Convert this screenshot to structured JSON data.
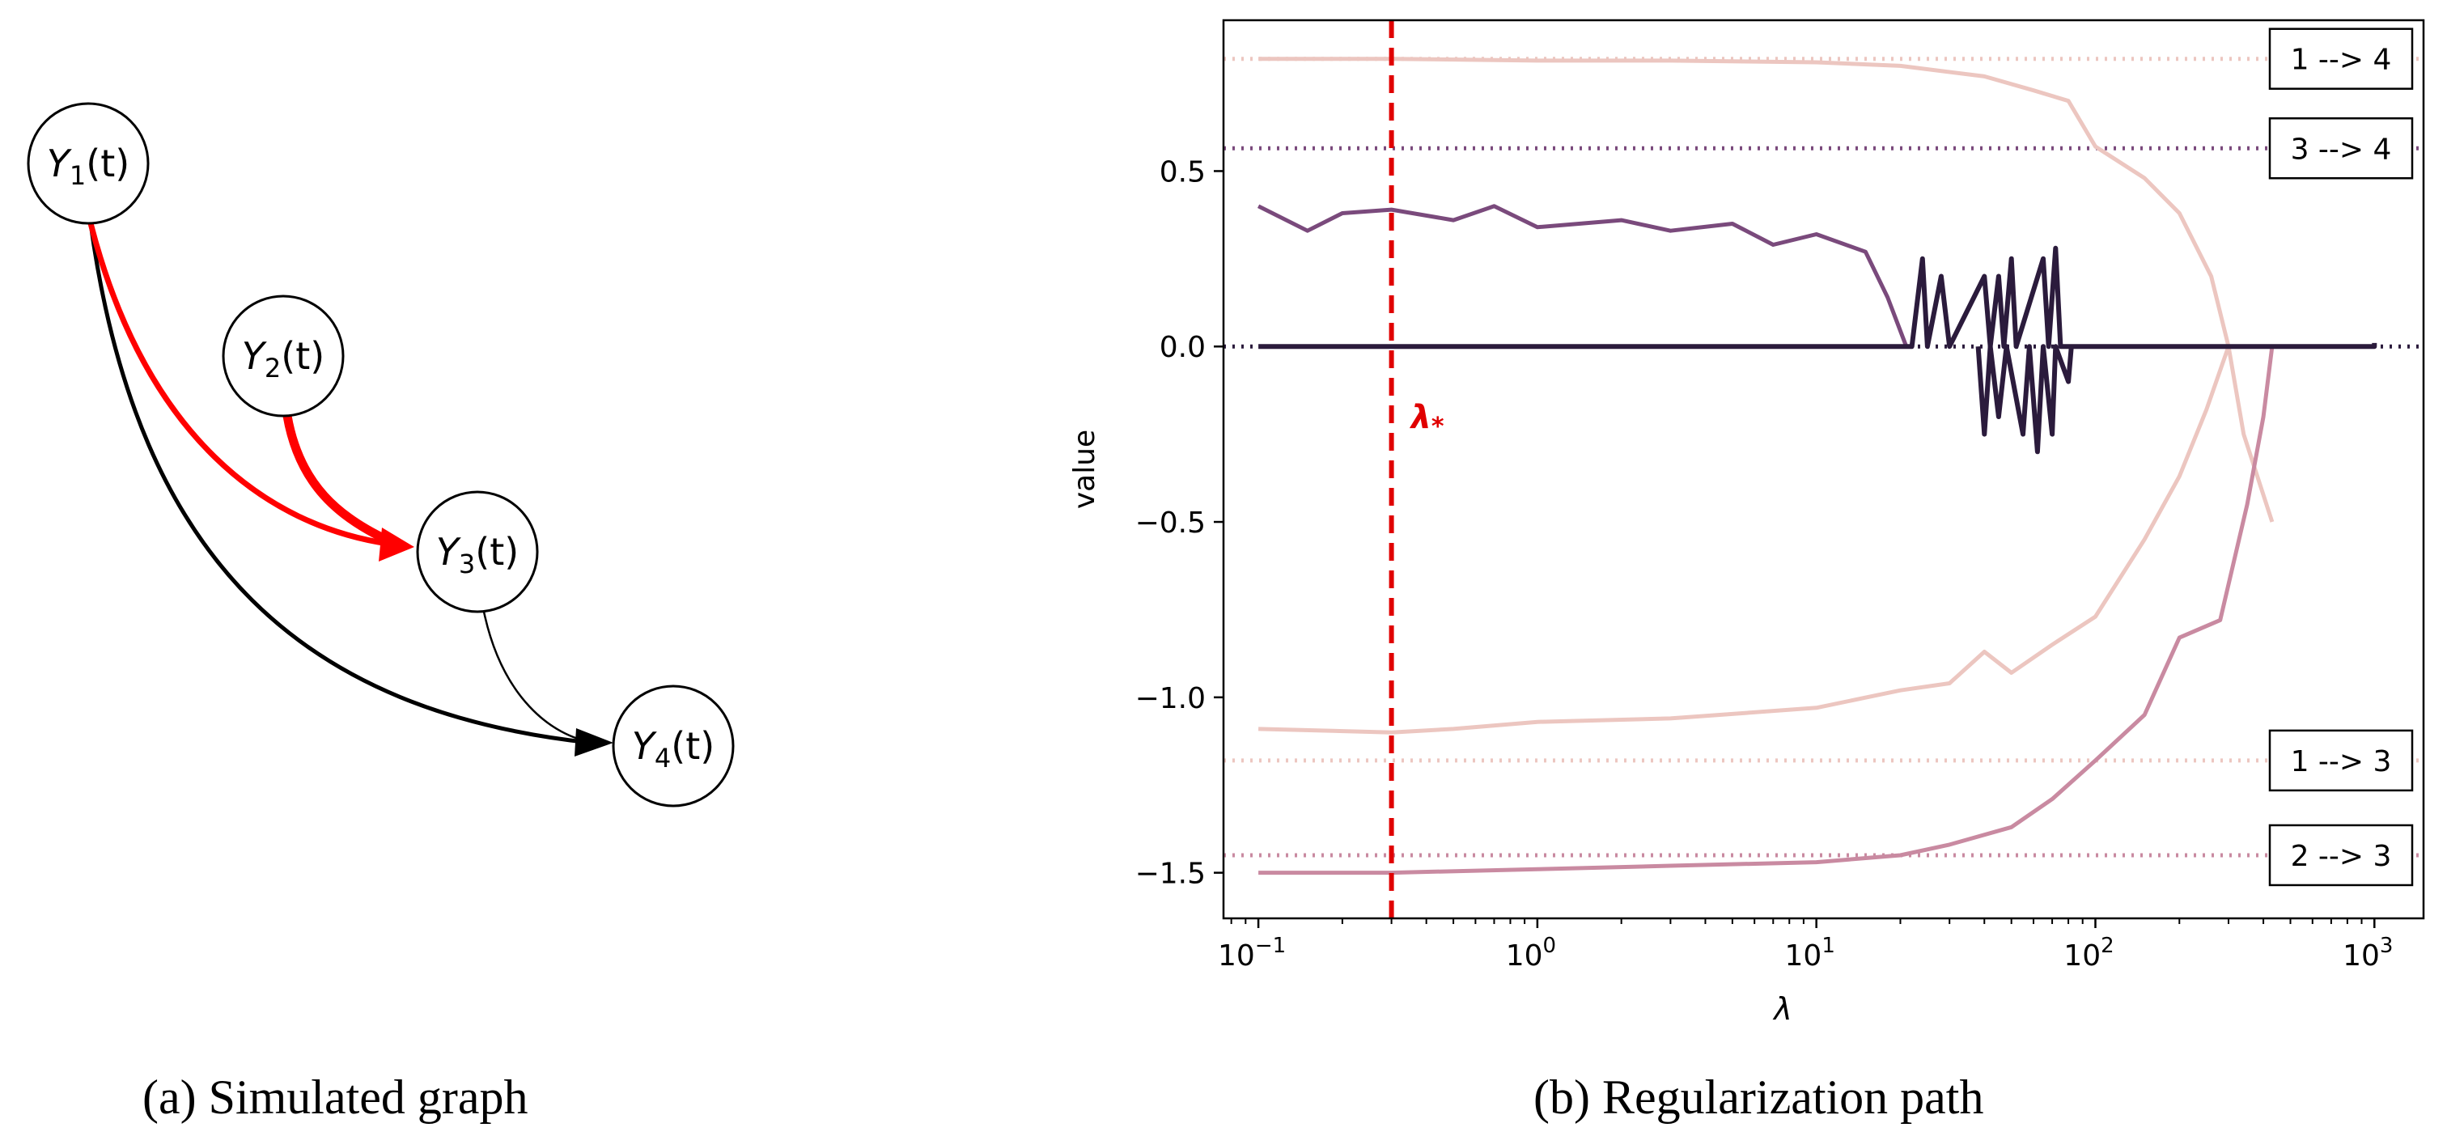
{
  "colors": {
    "highlight_edge": "#ff0000",
    "normal_edge": "#000000",
    "lambda_line": "#e00000",
    "path_1_4": "#ecc6c0",
    "path_3_4": "#7a4a7c",
    "path_1_3": "#ecc6c0",
    "path_2_3": "#c98aa1",
    "path_zero": "#2b1b3c"
  },
  "graph": {
    "nodes": [
      {
        "id": "Y1",
        "label": "Y",
        "sub": "1",
        "suffix": "(t)"
      },
      {
        "id": "Y2",
        "label": "Y",
        "sub": "2",
        "suffix": "(t)"
      },
      {
        "id": "Y3",
        "label": "Y",
        "sub": "3",
        "suffix": "(t)"
      },
      {
        "id": "Y4",
        "label": "Y",
        "sub": "4",
        "suffix": "(t)"
      }
    ],
    "edges": [
      {
        "from": "Y1",
        "to": "Y3",
        "highlighted": true
      },
      {
        "from": "Y2",
        "to": "Y3",
        "highlighted": true
      },
      {
        "from": "Y1",
        "to": "Y4",
        "highlighted": false
      },
      {
        "from": "Y3",
        "to": "Y4",
        "highlighted": false
      }
    ]
  },
  "captions": {
    "a": "(a) Simulated graph",
    "b": "(b) Regularization path"
  },
  "chart_data": {
    "type": "line",
    "xscale": "log",
    "xlim": [
      0.075,
      1500
    ],
    "ylim": [
      -1.63,
      0.93
    ],
    "xlabel": "λ",
    "ylabel": "value",
    "yticks": [
      0.5,
      0.0,
      -0.5,
      -1.0,
      -1.5
    ],
    "ytick_labels": [
      "0.5",
      "0.0",
      "−0.5",
      "−1.0",
      "−1.5"
    ],
    "xticks": [
      0.1,
      1,
      10,
      100,
      1000
    ],
    "xtick_labels": [
      [
        "10",
        "−1"
      ],
      [
        "10",
        "0"
      ],
      [
        "10",
        "1"
      ],
      [
        "10",
        "2"
      ],
      [
        "10",
        "3"
      ]
    ],
    "lambda_star": {
      "x": 0.3,
      "label": "λ",
      "sub": "*"
    },
    "true_values": [
      {
        "edge": "1 --> 4",
        "value": 0.82
      },
      {
        "edge": "3 --> 4",
        "value": 0.565
      },
      {
        "edge": "1 --> 3",
        "value": -1.18
      },
      {
        "edge": "2 --> 3",
        "value": -1.45
      }
    ],
    "series": [
      {
        "edge": "1 --> 4",
        "points": [
          [
            0.1,
            0.82
          ],
          [
            0.3,
            0.82
          ],
          [
            1,
            0.815
          ],
          [
            3,
            0.815
          ],
          [
            10,
            0.81
          ],
          [
            20,
            0.8
          ],
          [
            40,
            0.77
          ],
          [
            60,
            0.73
          ],
          [
            80,
            0.7
          ],
          [
            100,
            0.57
          ],
          [
            150,
            0.48
          ],
          [
            200,
            0.38
          ],
          [
            260,
            0.2
          ],
          [
            300,
            0.0
          ],
          [
            340,
            -0.25
          ],
          [
            430,
            -0.5
          ]
        ]
      },
      {
        "edge": "3 --> 4",
        "points": [
          [
            0.1,
            0.4
          ],
          [
            0.15,
            0.33
          ],
          [
            0.2,
            0.38
          ],
          [
            0.3,
            0.39
          ],
          [
            0.5,
            0.36
          ],
          [
            0.7,
            0.4
          ],
          [
            1,
            0.34
          ],
          [
            2,
            0.36
          ],
          [
            3,
            0.33
          ],
          [
            5,
            0.35
          ],
          [
            7,
            0.29
          ],
          [
            10,
            0.32
          ],
          [
            15,
            0.27
          ],
          [
            18,
            0.14
          ],
          [
            21,
            0.0
          ]
        ]
      },
      {
        "edge": "1 --> 3",
        "points": [
          [
            0.1,
            -1.09
          ],
          [
            0.3,
            -1.1
          ],
          [
            0.5,
            -1.09
          ],
          [
            1,
            -1.07
          ],
          [
            3,
            -1.06
          ],
          [
            10,
            -1.03
          ],
          [
            20,
            -0.98
          ],
          [
            30,
            -0.96
          ],
          [
            40,
            -0.87
          ],
          [
            50,
            -0.93
          ],
          [
            70,
            -0.85
          ],
          [
            100,
            -0.77
          ],
          [
            150,
            -0.55
          ],
          [
            200,
            -0.37
          ],
          [
            250,
            -0.18
          ],
          [
            300,
            0.0
          ]
        ]
      },
      {
        "edge": "2 --> 3",
        "points": [
          [
            0.1,
            -1.5
          ],
          [
            0.3,
            -1.5
          ],
          [
            1,
            -1.49
          ],
          [
            3,
            -1.48
          ],
          [
            10,
            -1.47
          ],
          [
            20,
            -1.45
          ],
          [
            30,
            -1.42
          ],
          [
            50,
            -1.37
          ],
          [
            70,
            -1.29
          ],
          [
            100,
            -1.18
          ],
          [
            150,
            -1.05
          ],
          [
            200,
            -0.83
          ],
          [
            280,
            -0.78
          ],
          [
            350,
            -0.45
          ],
          [
            400,
            -0.2
          ],
          [
            430,
            0.0
          ]
        ]
      },
      {
        "edge": "0",
        "points": [
          [
            0.1,
            0.0
          ],
          [
            22,
            0.0
          ],
          [
            24,
            0.25
          ],
          [
            25,
            0.0
          ],
          [
            28,
            0.2
          ],
          [
            30,
            0.0
          ],
          [
            40,
            0.2
          ],
          [
            42,
            0.0
          ],
          [
            45,
            0.2
          ],
          [
            47,
            0.0
          ],
          [
            50,
            0.25
          ],
          [
            52,
            0.0
          ],
          [
            65,
            0.25
          ],
          [
            68,
            0.0
          ],
          [
            72,
            0.28
          ],
          [
            75,
            0.0
          ],
          [
            1000,
            0.0
          ],
          [
            1000,
            0.01
          ]
        ]
      },
      {
        "edge": "0",
        "points": [
          [
            38,
            0.0
          ],
          [
            40,
            -0.25
          ],
          [
            42,
            0.0
          ],
          [
            45,
            -0.2
          ],
          [
            48,
            0.0
          ],
          [
            55,
            -0.25
          ],
          [
            58,
            0.0
          ],
          [
            62,
            -0.3
          ],
          [
            65,
            0.0
          ],
          [
            70,
            -0.25
          ],
          [
            72,
            0.0
          ],
          [
            80,
            -0.1
          ],
          [
            82,
            0.0
          ]
        ]
      }
    ]
  }
}
